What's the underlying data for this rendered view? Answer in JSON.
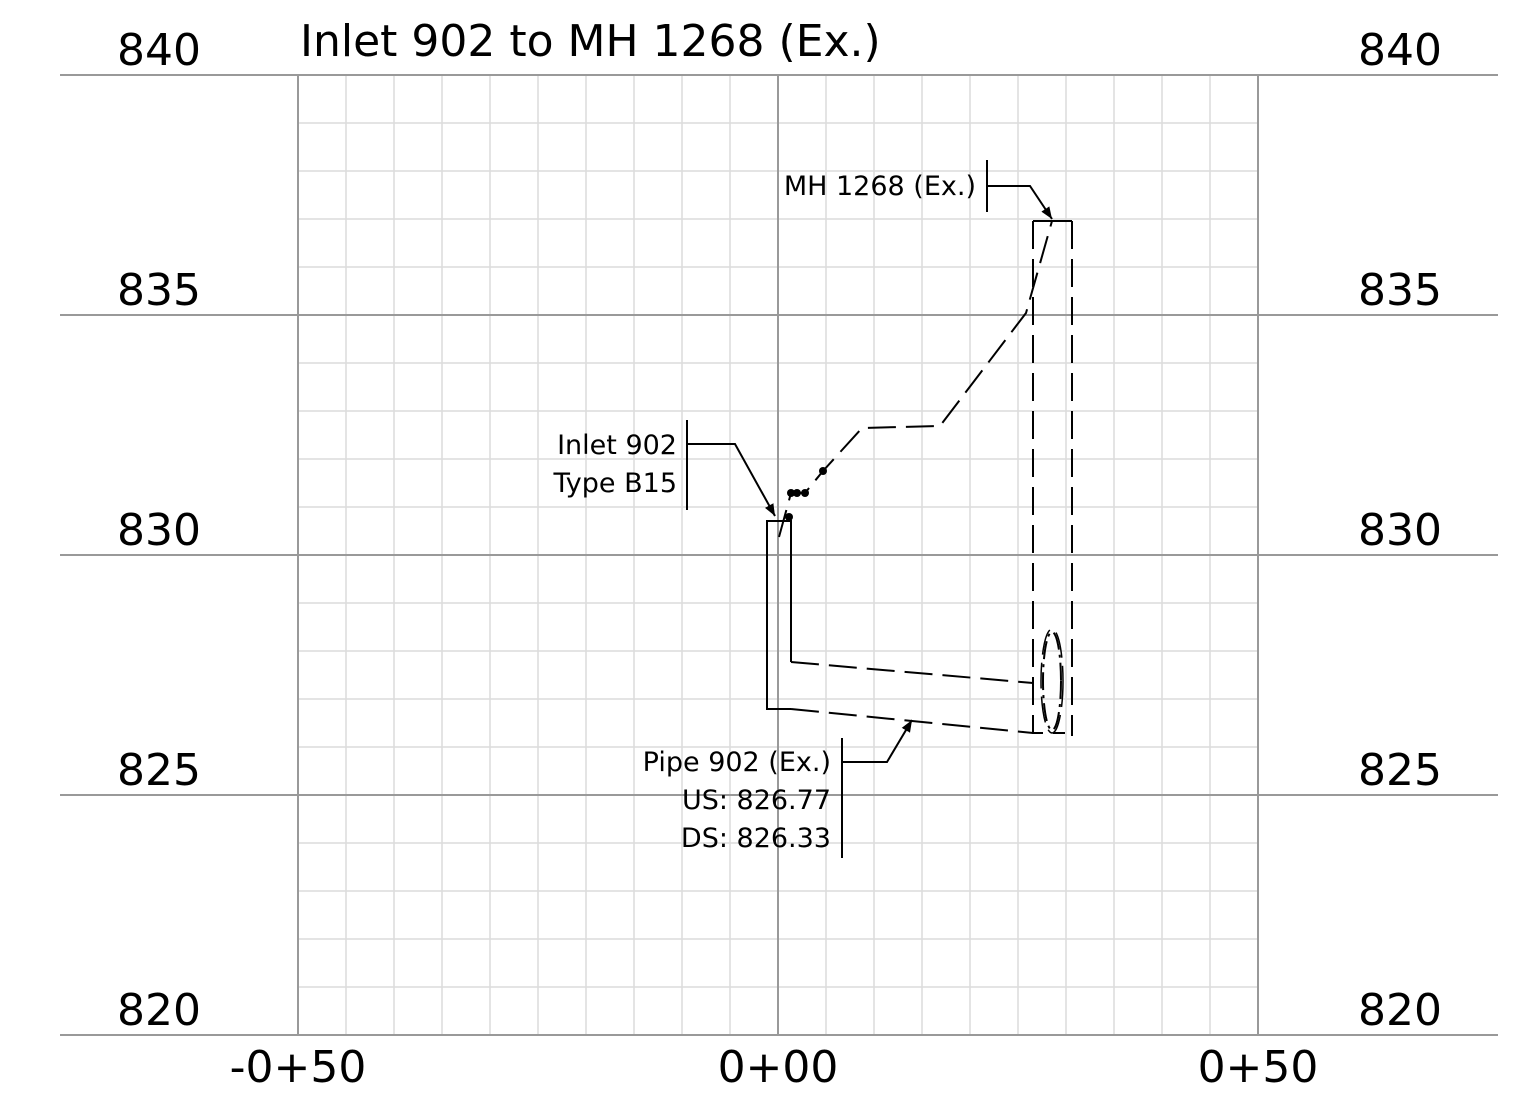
{
  "title": "Inlet 902 to MH 1268 (Ex.)",
  "elevation_labels": [
    "840",
    "835",
    "830",
    "825",
    "820"
  ],
  "station_labels": [
    "-0+50",
    "0+00",
    "0+50"
  ],
  "annotations": {
    "manhole": "MH 1268 (Ex.)",
    "inlet": [
      "Inlet 902",
      "Type B15"
    ],
    "pipe": [
      "Pipe 902 (Ex.)",
      "US: 826.77",
      "DS: 826.33"
    ]
  }
}
